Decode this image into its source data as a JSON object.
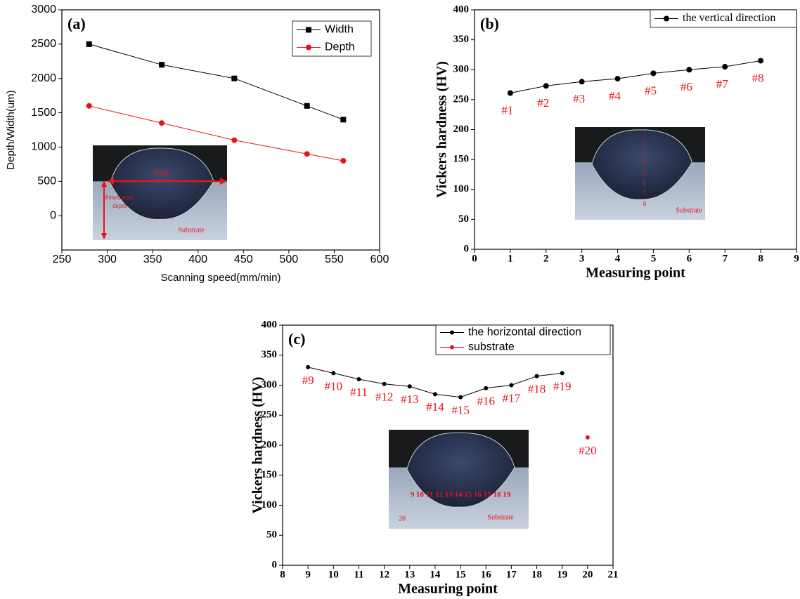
{
  "chart_data": [
    {
      "type": "line",
      "title": "(a)",
      "x_label": "Scanning speed(mm/min)",
      "y_label": "Depth/Width(um)",
      "xlim": [
        250,
        600
      ],
      "xticks": [
        250,
        300,
        350,
        400,
        450,
        500,
        550,
        600
      ],
      "ylim": [
        -500,
        3000
      ],
      "yticks": [
        0,
        500,
        1000,
        1500,
        2000,
        2500,
        3000
      ],
      "legend": "upper right",
      "series": [
        {
          "name": "Width",
          "color": "#000000",
          "marker": "square",
          "x": [
            280,
            360,
            440,
            520,
            560
          ],
          "values": [
            2500,
            2200,
            2000,
            1600,
            1400
          ]
        },
        {
          "name": "Depth",
          "color": "#e8141b",
          "marker": "circle",
          "x": [
            280,
            360,
            440,
            520,
            560
          ],
          "values": [
            1600,
            1350,
            1100,
            900,
            800
          ]
        }
      ],
      "inset_labels": [
        "Width",
        "Penetration",
        "depth",
        "Substrate"
      ]
    },
    {
      "type": "line",
      "title": "(b)",
      "x_label": "Measuring point",
      "y_label": "Vickers hardness (HV)",
      "xlim": [
        0,
        9
      ],
      "xticks": [
        0,
        1,
        2,
        3,
        4,
        5,
        6,
        7,
        8,
        9
      ],
      "ylim": [
        0,
        400
      ],
      "yticks": [
        0,
        50,
        100,
        150,
        200,
        250,
        300,
        350,
        400
      ],
      "legend": "upper right",
      "series": [
        {
          "name": "the vertical direction",
          "color": "#000000",
          "marker": "circle",
          "x": [
            1,
            2,
            3,
            4,
            5,
            6,
            7,
            8
          ],
          "values": [
            261,
            273,
            280,
            285,
            294,
            300,
            305,
            315
          ],
          "point_labels": [
            "#1",
            "#2",
            "#3",
            "#4",
            "#5",
            "#6",
            "#7",
            "#8"
          ]
        }
      ],
      "inset_labels": [
        "1",
        "2",
        "3",
        "4",
        "5",
        "6",
        "7",
        "8",
        "Substrate"
      ]
    },
    {
      "type": "line",
      "title": "(c)",
      "x_label": "Measuring point",
      "y_label": "Vickers hardness (HV)",
      "xlim": [
        8,
        21
      ],
      "xticks": [
        8,
        9,
        10,
        11,
        12,
        13,
        14,
        15,
        16,
        17,
        18,
        19,
        20,
        21
      ],
      "ylim": [
        0,
        400
      ],
      "yticks": [
        0,
        50,
        100,
        150,
        200,
        250,
        300,
        350,
        400
      ],
      "legend": "upper right",
      "series": [
        {
          "name": "the horizontal direction",
          "color": "#000000",
          "marker": "circle",
          "x": [
            9,
            10,
            11,
            12,
            13,
            14,
            15,
            16,
            17,
            18,
            19
          ],
          "values": [
            330,
            320,
            310,
            302,
            298,
            285,
            280,
            295,
            300,
            315,
            320
          ],
          "point_labels": [
            "#9",
            "#10",
            "#11",
            "#12",
            "#13",
            "#14",
            "#15",
            "#16",
            "#17",
            "#18",
            "#19"
          ]
        },
        {
          "name": "substrate",
          "color": "#e8141b",
          "marker": "circle",
          "x": [
            20
          ],
          "values": [
            213
          ],
          "point_labels": [
            "#20"
          ]
        }
      ],
      "inset_labels": [
        "9 10 11 12 13 14 15 16 17 18 19",
        "20",
        "Substrate"
      ]
    }
  ]
}
